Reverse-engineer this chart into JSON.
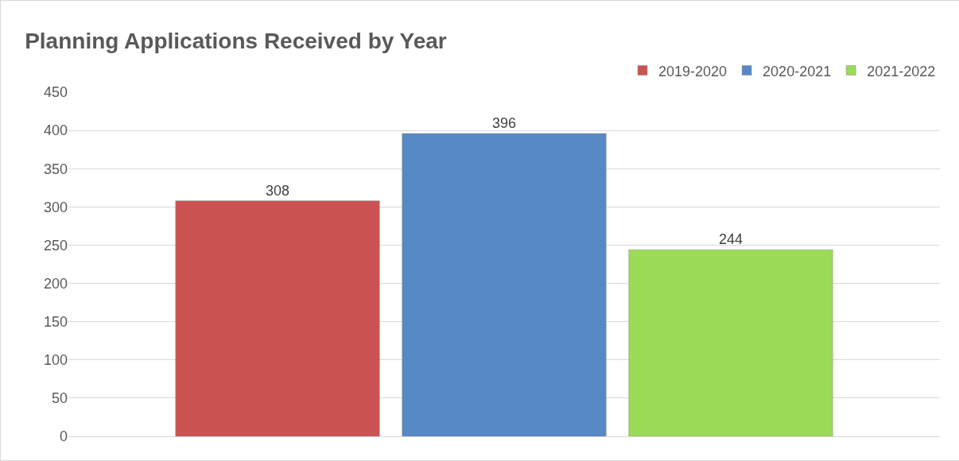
{
  "chart_data": {
    "type": "bar",
    "title": "Planning Applications Received by Year",
    "categories": [
      null
    ],
    "series": [
      {
        "name": "2019-2020",
        "color": "#cb5452",
        "values": [
          308
        ]
      },
      {
        "name": "2020-2021",
        "color": "#5689c6",
        "values": [
          396
        ]
      },
      {
        "name": "2021-2022",
        "color": "#9bdb57",
        "values": [
          244
        ]
      }
    ],
    "ylim": [
      0,
      450
    ],
    "yticks": [
      0,
      50,
      100,
      150,
      200,
      250,
      300,
      350,
      400,
      450
    ],
    "grid": "y",
    "legend": "top right",
    "data_labels": true
  }
}
